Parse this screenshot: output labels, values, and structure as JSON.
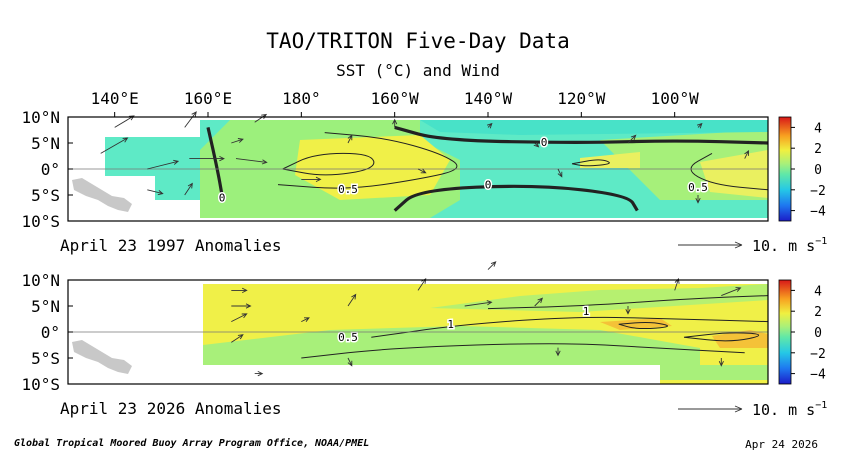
{
  "title": "TAO/TRITON Five-Day Data",
  "subtitle": "SST (°C) and Wind",
  "footer": {
    "credit": "Global Tropical Moored Buoy Array Program Office, NOAA/PMEL",
    "date": "Apr 24 2026"
  },
  "colors": {
    "contour": "#222222",
    "land": "#c8c8c8",
    "arrow": "#333333"
  },
  "chart_data": [
    {
      "type": "heatmap",
      "variable": "SST anomaly with wind vectors",
      "label": "April 23 1997 Anomalies",
      "x_ticks": [
        "140°E",
        "160°E",
        "180°",
        "160°W",
        "140°W",
        "120°W",
        "100°W"
      ],
      "y_ticks": [
        "10°N",
        "5°N",
        "0°",
        "5°S",
        "10°S"
      ],
      "xlim_lon": [
        130,
        280
      ],
      "ylim_lat": [
        -10,
        10
      ],
      "colorbar_ticks": [
        "4",
        "2",
        "0",
        "−2",
        "−4"
      ],
      "colorbar_range": [
        -5,
        5
      ],
      "wind_scale_label": "10. m s",
      "wind_scale_exp": "−1",
      "contours": [
        {
          "label": "0",
          "thick": true,
          "points": [
            [
              200,
              8
            ],
            [
              210,
              5.5
            ],
            [
              240,
              5
            ],
            [
              260,
              5.5
            ],
            [
              280,
              5
            ]
          ]
        },
        {
          "label": "0",
          "thick": true,
          "points": [
            [
              200,
              -8
            ],
            [
              205,
              -4
            ],
            [
              230,
              -3
            ],
            [
              250,
              -5
            ],
            [
              252,
              -8
            ]
          ]
        },
        {
          "label": "0",
          "thick": true,
          "points": [
            [
              160,
              8
            ],
            [
              162,
              0
            ],
            [
              163,
              -5
            ]
          ]
        },
        {
          "label": "0.5",
          "thick": false,
          "points": [
            [
              175,
              -3
            ],
            [
              190,
              -4
            ],
            [
              205,
              -2
            ],
            [
              215,
              0
            ],
            [
              210,
              3
            ],
            [
              198,
              6
            ],
            [
              185,
              7
            ]
          ]
        },
        {
          "label": "0.5",
          "thick": false,
          "points": [
            [
              268,
              3
            ],
            [
              262,
              0
            ],
            [
              268,
              -3
            ],
            [
              280,
              -4
            ]
          ]
        },
        {
          "label": "",
          "thick": false,
          "points": [
            [
              176,
              0
            ],
            [
              183,
              3
            ],
            [
              195,
              3
            ],
            [
              196,
              0
            ],
            [
              185,
              -1.5
            ],
            [
              176,
              0
            ]
          ]
        },
        {
          "label": "",
          "thick": false,
          "points": [
            [
              238,
              1
            ],
            [
              244,
              2
            ],
            [
              247,
              1
            ],
            [
              241,
              0.5
            ],
            [
              238,
              1
            ]
          ]
        }
      ],
      "value_labels": [
        {
          "text": "0",
          "lon": 232,
          "lat": 5.2
        },
        {
          "text": "0",
          "lon": 220,
          "lat": -3
        },
        {
          "text": "0",
          "lon": 163,
          "lat": -5.5
        },
        {
          "text": "0.5",
          "lon": 190,
          "lat": -3.8
        },
        {
          "text": "0.5",
          "lon": 265,
          "lat": -3.5
        }
      ],
      "winds": [
        {
          "lon": 137,
          "lat": 3,
          "u": 7,
          "v": 4
        },
        {
          "lon": 140,
          "lat": 8,
          "u": 5,
          "v": 3
        },
        {
          "lon": 147,
          "lat": 0,
          "u": 8,
          "v": 2
        },
        {
          "lon": 147,
          "lat": -4,
          "u": 4,
          "v": -1
        },
        {
          "lon": 155,
          "lat": 8,
          "u": 3,
          "v": 4
        },
        {
          "lon": 156,
          "lat": 2,
          "u": 9,
          "v": 0
        },
        {
          "lon": 155,
          "lat": -5,
          "u": 2,
          "v": 3
        },
        {
          "lon": 165,
          "lat": 5,
          "u": 3,
          "v": 1
        },
        {
          "lon": 166,
          "lat": 2,
          "u": 8,
          "v": -1
        },
        {
          "lon": 170,
          "lat": 9,
          "u": 3,
          "v": 2
        },
        {
          "lon": 180,
          "lat": -2,
          "u": 5,
          "v": 0
        },
        {
          "lon": 190,
          "lat": 5,
          "u": 1,
          "v": 2
        },
        {
          "lon": 200,
          "lat": 8,
          "u": 0,
          "v": 2
        },
        {
          "lon": 205,
          "lat": 0,
          "u": 2,
          "v": -1
        },
        {
          "lon": 220,
          "lat": 8,
          "u": 1,
          "v": 1
        },
        {
          "lon": 230,
          "lat": 5,
          "u": 1,
          "v": -1
        },
        {
          "lon": 235,
          "lat": 0,
          "u": 1,
          "v": -2
        },
        {
          "lon": 250,
          "lat": 5,
          "u": 2,
          "v": 2
        },
        {
          "lon": 265,
          "lat": 8,
          "u": 1,
          "v": 1
        },
        {
          "lon": 265,
          "lat": -5,
          "u": 0,
          "v": -2
        },
        {
          "lon": 275,
          "lat": 2,
          "u": 1,
          "v": 2
        }
      ]
    },
    {
      "type": "heatmap",
      "variable": "SST anomaly with wind vectors",
      "label": "April 23 2026 Anomalies",
      "x_ticks": [
        "140°E",
        "160°E",
        "180°",
        "160°W",
        "140°W",
        "120°W",
        "100°W"
      ],
      "y_ticks": [
        "10°N",
        "5°N",
        "0°",
        "5°S",
        "10°S"
      ],
      "xlim_lon": [
        130,
        280
      ],
      "ylim_lat": [
        -10,
        10
      ],
      "colorbar_ticks": [
        "4",
        "2",
        "0",
        "−2",
        "−4"
      ],
      "colorbar_range": [
        -5,
        5
      ],
      "wind_scale_label": "10. m s",
      "wind_scale_exp": "−1",
      "contours": [
        {
          "label": "1",
          "thick": false,
          "points": [
            [
              195,
              -1
            ],
            [
              215,
              1.5
            ],
            [
              240,
              3
            ],
            [
              260,
              2.5
            ],
            [
              280,
              2
            ]
          ]
        },
        {
          "label": "1",
          "thick": false,
          "points": [
            [
              220,
              4.5
            ],
            [
              240,
              5
            ],
            [
              265,
              6.5
            ],
            [
              280,
              7
            ]
          ]
        },
        {
          "label": "0.5",
          "thick": false,
          "points": [
            [
              180,
              -5
            ],
            [
              200,
              -3
            ],
            [
              235,
              -2
            ],
            [
              255,
              -3
            ],
            [
              275,
              -4
            ]
          ]
        },
        {
          "label": "",
          "thick": false,
          "points": [
            [
              248,
              1.5
            ],
            [
              255,
              2
            ],
            [
              260,
              1
            ],
            [
              252,
              0.5
            ],
            [
              248,
              1.5
            ]
          ]
        },
        {
          "label": "",
          "thick": false,
          "points": [
            [
              262,
              -1
            ],
            [
              272,
              0
            ],
            [
              280,
              -0.5
            ],
            [
              272,
              -2
            ],
            [
              262,
              -1
            ]
          ]
        }
      ],
      "value_labels": [
        {
          "text": "1",
          "lon": 212,
          "lat": 1.5
        },
        {
          "text": "1",
          "lon": 241,
          "lat": 4
        },
        {
          "text": "0.5",
          "lon": 190,
          "lat": -1
        }
      ],
      "winds": [
        {
          "lon": 165,
          "lat": 8,
          "u": 4,
          "v": 0
        },
        {
          "lon": 165,
          "lat": 5,
          "u": 5,
          "v": 0
        },
        {
          "lon": 165,
          "lat": 2,
          "u": 4,
          "v": 2
        },
        {
          "lon": 165,
          "lat": -2,
          "u": 3,
          "v": 2
        },
        {
          "lon": 170,
          "lat": -8,
          "u": 2,
          "v": 0
        },
        {
          "lon": 180,
          "lat": 2,
          "u": 2,
          "v": 1
        },
        {
          "lon": 190,
          "lat": 5,
          "u": 2,
          "v": 3
        },
        {
          "lon": 190,
          "lat": -5,
          "u": 1,
          "v": -2
        },
        {
          "lon": 205,
          "lat": 8,
          "u": 2,
          "v": 3
        },
        {
          "lon": 215,
          "lat": 5,
          "u": 7,
          "v": 1
        },
        {
          "lon": 220,
          "lat": 12,
          "u": 2,
          "v": 2
        },
        {
          "lon": 230,
          "lat": 5,
          "u": 2,
          "v": 2
        },
        {
          "lon": 235,
          "lat": -3,
          "u": 0,
          "v": -2
        },
        {
          "lon": 250,
          "lat": 5,
          "u": 0,
          "v": -2
        },
        {
          "lon": 260,
          "lat": 8,
          "u": 1,
          "v": 3
        },
        {
          "lon": 270,
          "lat": 7,
          "u": 5,
          "v": 2
        },
        {
          "lon": 270,
          "lat": -5,
          "u": 0,
          "v": -2
        }
      ]
    }
  ]
}
